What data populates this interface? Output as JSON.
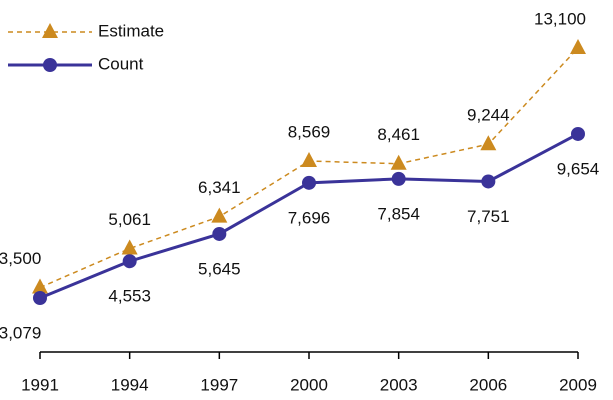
{
  "chart_data": {
    "type": "line",
    "categories": [
      "1991",
      "1994",
      "1997",
      "2000",
      "2003",
      "2006",
      "2009"
    ],
    "series": [
      {
        "name": "Estimate",
        "color": "#cc8a1f",
        "dashed": true,
        "marker": "triangle",
        "values": [
          3500,
          5061,
          6341,
          8569,
          8461,
          9244,
          13100
        ],
        "value_labels": [
          "3,500",
          "5,061",
          "6,341",
          "8,569",
          "8,461",
          "9,244",
          "13,100"
        ]
      },
      {
        "name": "Count",
        "color": "#3a3399",
        "dashed": false,
        "marker": "circle",
        "values": [
          3079,
          4553,
          5645,
          7696,
          7854,
          7751,
          9654
        ],
        "value_labels": [
          "3,079",
          "4,553",
          "5,645",
          "7,696",
          "7,854",
          "7,751",
          "9,654"
        ]
      }
    ],
    "legend": "upper left"
  }
}
